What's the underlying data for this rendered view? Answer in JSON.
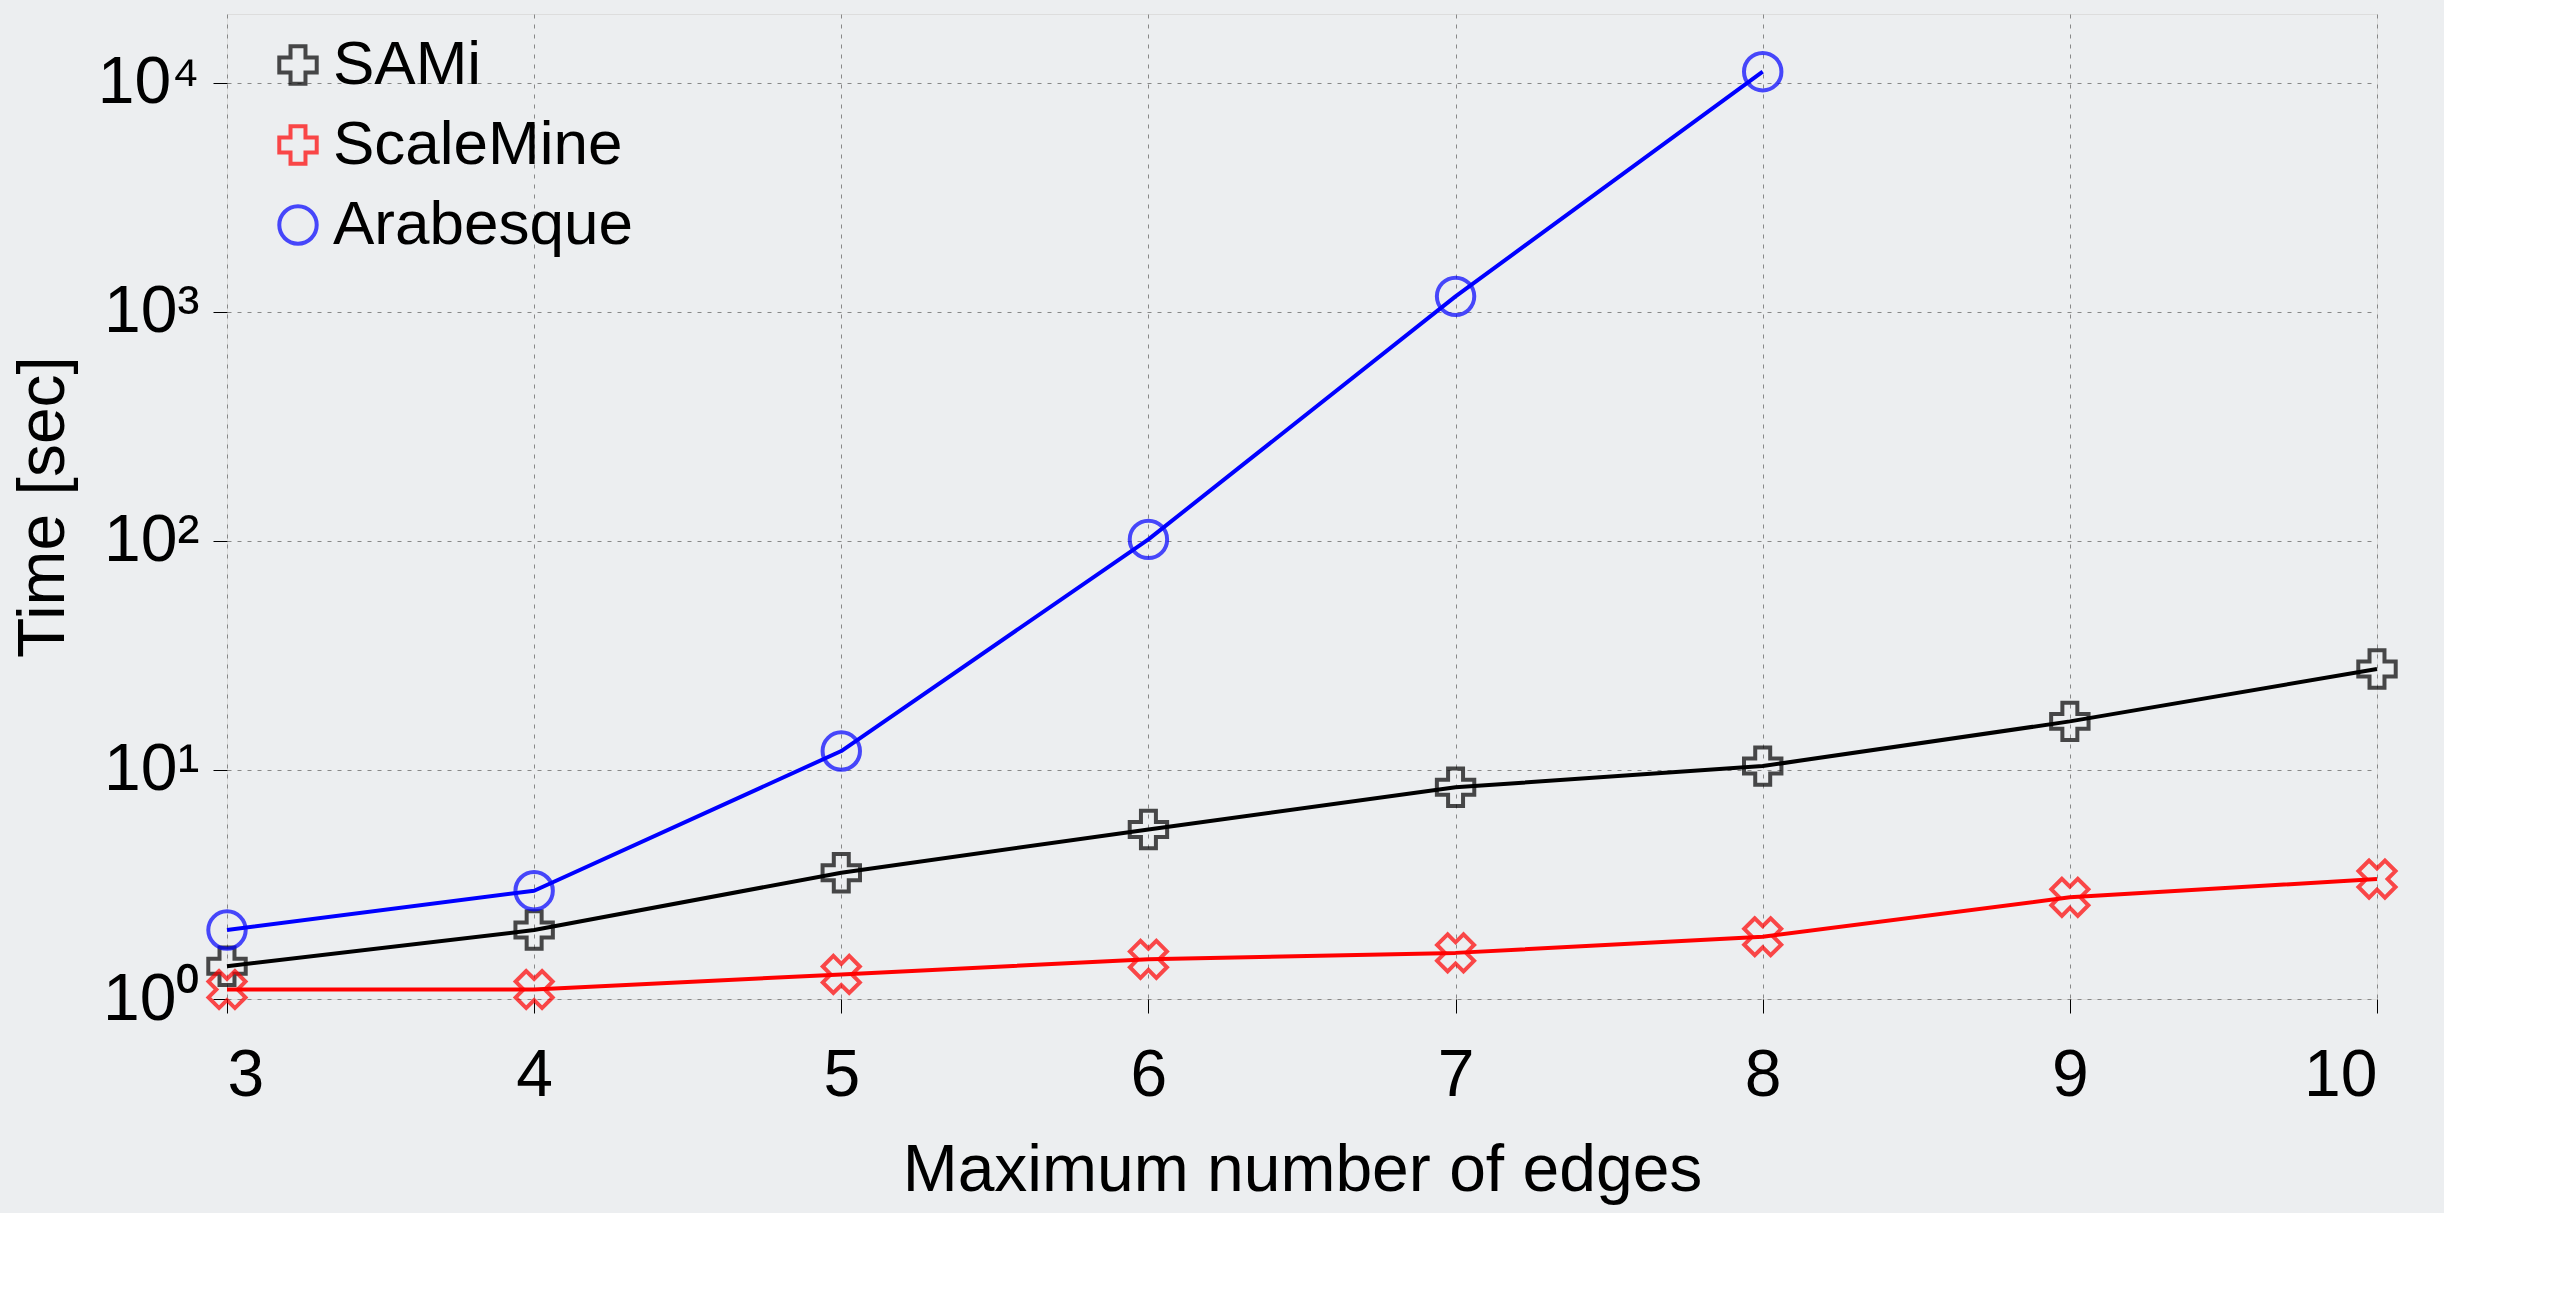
{
  "chart_data": {
    "type": "line",
    "xlabel": "Maximum number of edges",
    "ylabel": "Time [sec]",
    "x": [
      3,
      4,
      5,
      6,
      7,
      8,
      9,
      10
    ],
    "series": [
      {
        "name": "SAMi",
        "color": "#000000",
        "marker": "cross",
        "values": [
          1.39,
          2.0,
          3.56,
          5.5,
          8.4,
          10.4,
          16.3,
          27.6
        ]
      },
      {
        "name": "ScaleMine",
        "color": "#ff0000",
        "marker": "x",
        "values": [
          1.1,
          1.1,
          1.28,
          1.49,
          1.59,
          1.87,
          2.78,
          3.34
        ]
      },
      {
        "name": "Arabesque",
        "color": "#0000ff",
        "marker": "circle",
        "values": [
          2.0,
          2.97,
          12.1,
          101.6,
          1170,
          11200,
          null,
          null
        ]
      }
    ],
    "log": "y",
    "xlim": [
      3,
      10
    ],
    "xticks": [
      3,
      4,
      5,
      6,
      7,
      8,
      9,
      10
    ],
    "ylim": [
      1,
      20000
    ],
    "yticks": [
      {
        "value": 1,
        "label": "10⁰"
      },
      {
        "value": 10,
        "label": "10¹"
      },
      {
        "value": 100,
        "label": "10²"
      },
      {
        "value": 1000,
        "label": "10³"
      },
      {
        "value": 10000,
        "label": "10⁴"
      }
    ],
    "grid": true,
    "legend": "top left",
    "line_style": "solid"
  }
}
